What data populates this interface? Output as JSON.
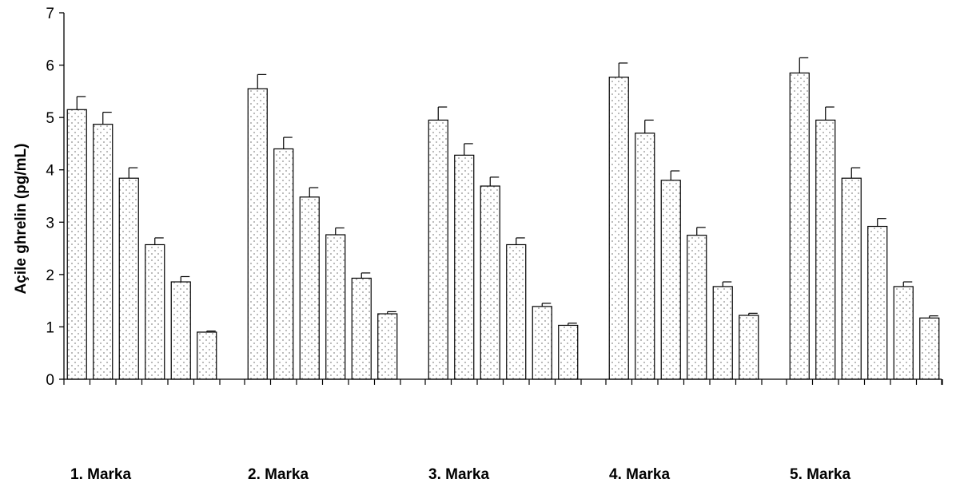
{
  "chart_data": {
    "type": "bar",
    "ylabel": "Açile ghrelin (pg/mL)",
    "xlabel": "",
    "ylim": [
      0,
      7
    ],
    "yticks": [
      "0",
      "1",
      "2",
      "3",
      "4",
      "5",
      "6",
      "7"
    ],
    "grid": false,
    "categories": [
      "1. Marka",
      "2. Marka",
      "3. Marka",
      "4. Marka",
      "5. Marka"
    ],
    "series": [
      {
        "values": [
          5.15,
          5.55,
          4.95,
          5.77,
          5.85
        ],
        "errors": [
          0.25,
          0.27,
          0.25,
          0.27,
          0.29
        ]
      },
      {
        "values": [
          4.87,
          4.4,
          4.28,
          4.7,
          4.95
        ],
        "errors": [
          0.23,
          0.22,
          0.22,
          0.25,
          0.25
        ]
      },
      {
        "values": [
          3.84,
          3.48,
          3.69,
          3.8,
          3.84
        ],
        "errors": [
          0.2,
          0.18,
          0.17,
          0.18,
          0.2
        ]
      },
      {
        "values": [
          2.57,
          2.76,
          2.57,
          2.75,
          2.92
        ],
        "errors": [
          0.13,
          0.13,
          0.13,
          0.15,
          0.15
        ]
      },
      {
        "values": [
          1.86,
          1.93,
          1.39,
          1.77,
          1.77
        ],
        "errors": [
          0.1,
          0.1,
          0.06,
          0.09,
          0.09
        ]
      },
      {
        "values": [
          0.9,
          1.25,
          1.03,
          1.22,
          1.17
        ],
        "errors": [
          0.02,
          0.04,
          0.04,
          0.04,
          0.04
        ]
      }
    ],
    "bar_fill": "#f2f2f2",
    "bar_stroke": "#000000",
    "dot_color": "#7f7f7f"
  }
}
